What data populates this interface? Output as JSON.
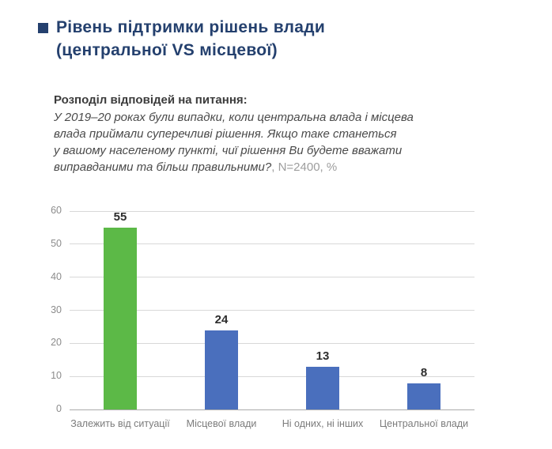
{
  "header": {
    "title_line1": "Рівень підтримки рішень влади",
    "title_line2": "(центральної VS місцевої)",
    "title_color": "#24406e"
  },
  "question": {
    "lead": "Розподіл відповідей на питання:",
    "body_lines": [
      "У 2019–20 роках були випадки, коли центральна влада і місцева",
      "влада приймали суперечливі рішення. Якщо таке станеться",
      "у вашому населеному пункті, чиї рішення Ви будете вважати",
      "виправданими та більш правильними?"
    ],
    "note": ", N=2400, %"
  },
  "chart_data": {
    "type": "bar",
    "title": "",
    "xlabel": "",
    "ylabel": "",
    "categories": [
      "Залежить від ситуації",
      "Місцевої влади",
      "Ні одних, ні інших",
      "Центральної влади"
    ],
    "values": [
      55,
      24,
      13,
      8
    ],
    "value_labels": [
      "55",
      "24",
      "13",
      "8"
    ],
    "bar_colors": [
      "#5cb947",
      "#4a6fbd",
      "#4a6fbd",
      "#4a6fbd"
    ],
    "ylim": [
      0,
      60
    ],
    "ytick_step": 10,
    "yticks": [
      0,
      10,
      20,
      30,
      40,
      50,
      60
    ],
    "grid": true,
    "legend": "none",
    "colors": {
      "gridline": "#d8d8d8",
      "baseline": "#ababab",
      "tick_text": "#8c8c8c",
      "category_text": "#7c7c7c",
      "value_text": "#2d2d2d"
    }
  }
}
